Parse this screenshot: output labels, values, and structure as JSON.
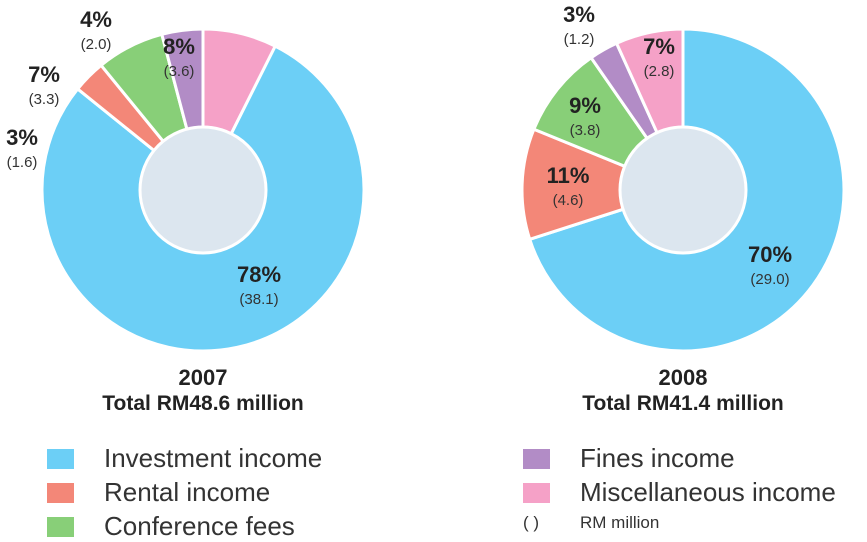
{
  "colors": {
    "investment": "#6ccff6",
    "rental": "#f38778",
    "conference": "#88cf78",
    "fines": "#b28cc6",
    "misc": "#f5a1c7",
    "hole": "#dce6ef"
  },
  "chart_data": [
    {
      "type": "pie",
      "year": "2007",
      "total": "Total RM48.6 million",
      "slices": [
        {
          "key": "misc",
          "value": 3.6,
          "percent": "8%",
          "amount": "(3.6)"
        },
        {
          "key": "investment",
          "value": 38.1,
          "percent": "78%",
          "amount": "(38.1)"
        },
        {
          "key": "rental",
          "value": 1.6,
          "percent": "3%",
          "amount": "(1.6)"
        },
        {
          "key": "conference",
          "value": 3.3,
          "percent": "7%",
          "amount": "(3.3)"
        },
        {
          "key": "fines",
          "value": 2.0,
          "percent": "4%",
          "amount": "(2.0)"
        }
      ]
    },
    {
      "type": "pie",
      "year": "2008",
      "total": "Total RM41.4 million",
      "slices": [
        {
          "key": "investment",
          "value": 29.0,
          "percent": "70%",
          "amount": "(29.0)"
        },
        {
          "key": "rental",
          "value": 4.6,
          "percent": "11%",
          "amount": "(4.6)"
        },
        {
          "key": "conference",
          "value": 3.8,
          "percent": "9%",
          "amount": "(3.8)"
        },
        {
          "key": "fines",
          "value": 1.2,
          "percent": "3%",
          "amount": "(1.2)"
        },
        {
          "key": "misc",
          "value": 2.8,
          "percent": "7%",
          "amount": "(2.8)"
        }
      ]
    }
  ],
  "legend": [
    {
      "key": "investment",
      "label": "Investment income"
    },
    {
      "key": "rental",
      "label": "Rental income"
    },
    {
      "key": "conference",
      "label": "Conference fees"
    },
    {
      "key": "fines",
      "label": "Fines income"
    },
    {
      "key": "misc",
      "label": "Miscellaneous income"
    }
  ],
  "note": {
    "symbol": "(     )",
    "label": "RM million"
  }
}
